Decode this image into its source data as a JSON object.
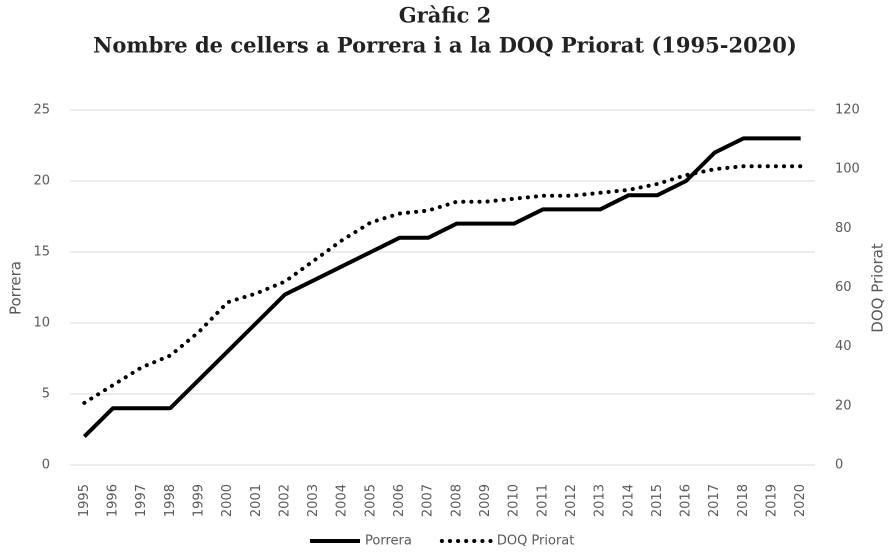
{
  "chart_data": {
    "type": "line",
    "title": "Gràfic 2",
    "subtitle": "Nombre de cellers a Porrera i a la DOQ Priorat (1995-2020)",
    "y_label": "Porrera",
    "y2_label": "DOQ Priorat",
    "categories": [
      "1995",
      "1996",
      "1997",
      "1998",
      "1999",
      "2000",
      "2001",
      "2002",
      "2003",
      "2004",
      "2005",
      "2006",
      "2007",
      "2008",
      "2009",
      "2010",
      "2011",
      "2012",
      "2013",
      "2014",
      "2015",
      "2016",
      "2017",
      "2018",
      "2019",
      "2020"
    ],
    "series": [
      {
        "name": "Porrera",
        "color": "#000000",
        "line_style": "solid",
        "values": [
          2,
          4,
          4,
          4,
          6,
          8,
          10,
          12,
          13,
          14,
          15,
          16,
          16,
          17,
          17,
          17,
          18,
          18,
          18,
          19,
          19,
          20,
          22,
          23,
          23,
          23
        ]
      },
      {
        "name": "DOQ Priorat",
        "color": "#000000",
        "line_style": "dotted",
        "axis": "y2",
        "values": [
          21,
          27,
          33,
          37,
          45,
          55,
          58,
          62,
          69,
          76,
          82,
          85,
          86,
          89,
          89,
          90,
          91,
          91,
          92,
          93,
          95,
          98,
          100,
          101,
          101,
          101
        ]
      }
    ],
    "ylim": [
      0,
      25
    ],
    "yticks": [
      0,
      5,
      10,
      15,
      20,
      25
    ],
    "y2lim": [
      0,
      120
    ],
    "y2ticks": [
      0,
      20,
      40,
      60,
      80,
      100,
      120
    ],
    "grid": true,
    "legend": "bottom"
  }
}
